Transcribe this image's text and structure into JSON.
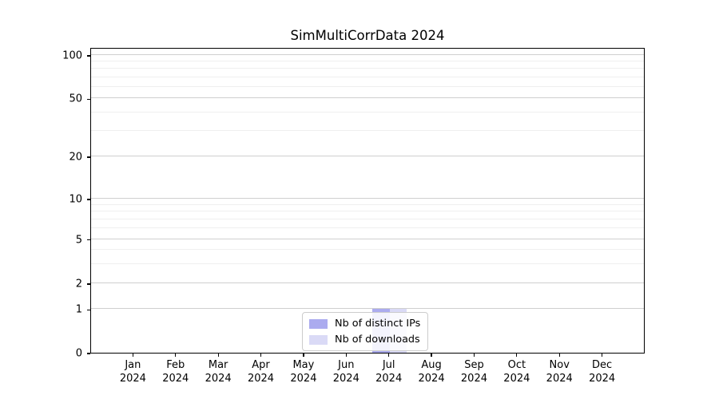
{
  "title": "SimMultiCorrData 2024",
  "chart_data": {
    "type": "bar",
    "title": "SimMultiCorrData 2024",
    "categories": [
      "Jan 2024",
      "Feb 2024",
      "Mar 2024",
      "Apr 2024",
      "May 2024",
      "Jun 2024",
      "Jul 2024",
      "Aug 2024",
      "Sep 2024",
      "Oct 2024",
      "Nov 2024",
      "Dec 2024"
    ],
    "x_tick_labels": {
      "months": [
        "Jan",
        "Feb",
        "Mar",
        "Apr",
        "May",
        "Jun",
        "Jul",
        "Aug",
        "Sep",
        "Oct",
        "Nov",
        "Dec"
      ],
      "year": "2024"
    },
    "series": [
      {
        "name": "Nb of distinct IPs",
        "color": "#ababef",
        "values": [
          0,
          0,
          0,
          0,
          0,
          0,
          1,
          0,
          0,
          0,
          0,
          0
        ]
      },
      {
        "name": "Nb of downloads",
        "color": "#dadaf6",
        "values": [
          0,
          0,
          0,
          0,
          0,
          0,
          1,
          0,
          0,
          0,
          0,
          0
        ]
      }
    ],
    "y_axis": {
      "scale": "symlog",
      "major_ticks": [
        0,
        1,
        2,
        5,
        10,
        20,
        50,
        100
      ],
      "minor_ticks": [
        3,
        4,
        6,
        7,
        8,
        9,
        30,
        40,
        60,
        70,
        80,
        90
      ]
    },
    "legend": {
      "position": "lower center",
      "entries": [
        "Nb of distinct IPs",
        "Nb of downloads"
      ]
    },
    "grid": "horizontal-only",
    "colors": {
      "major_grid": "#cfcfcf",
      "minor_grid": "#efefef",
      "spine": "#000000",
      "text": "#000000",
      "background": "#ffffff"
    }
  }
}
